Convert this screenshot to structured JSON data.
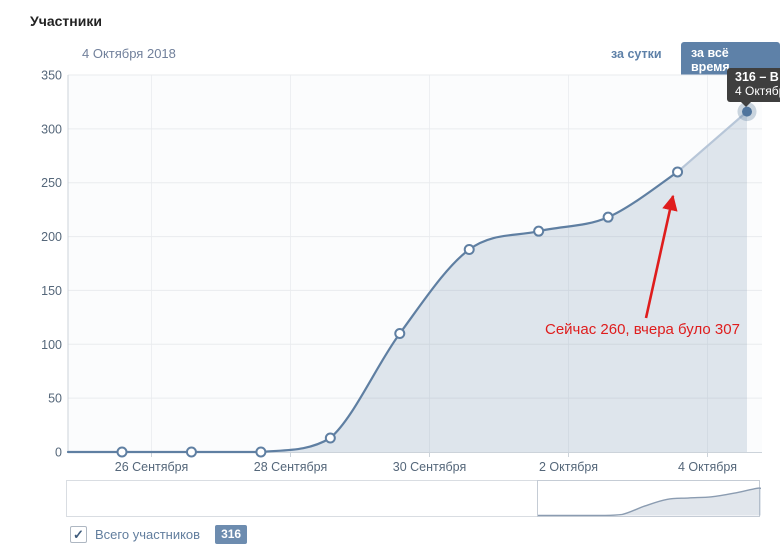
{
  "header": {
    "title": "Участники",
    "date_label": "4 Октября 2018"
  },
  "tabs": {
    "daily_label": "за сутки",
    "all_time_label": "за всё время",
    "active": "за всё время"
  },
  "tooltip": {
    "value_line": "316 – В",
    "date_line": "4 Октябр"
  },
  "annotation": {
    "text": "Сейчас 260, вчера було 307"
  },
  "legend": {
    "label": "Всего участников",
    "count": "316",
    "checked": true,
    "checkmark_glyph": "✓"
  },
  "colors": {
    "accent": "#5e81a8",
    "line": "#5f7fa2",
    "line_light": "#b7c6d8",
    "area_fill": "rgba(95,127,160,0.18)",
    "final_dot": "#4f749c",
    "final_halo": "rgba(95,127,160,0.32)",
    "annotation_red": "#df1d1d",
    "tooltip_bg": "#3f3f3f",
    "badge_bg": "#6d8caf",
    "grid": "#e9ebee",
    "grid_vertical": "#edeff2",
    "axis": "#ccd3da",
    "tick_text": "#55677a",
    "plot_bg": "#fbfcfd",
    "mini_line": "#8b9cb1",
    "mini_fill": "rgba(120,140,168,0.22)"
  },
  "chart_data": {
    "type": "area",
    "title": "Участники",
    "series": [
      {
        "name": "Всего участников",
        "values": [
          0,
          0,
          0,
          13,
          110,
          188,
          205,
          218,
          260,
          316
        ]
      }
    ],
    "x_tick_labels": [
      "26 Сентября",
      "28 Сентября",
      "30 Сентября",
      "2 Октября",
      "4 Октября"
    ],
    "y_ticks": [
      0,
      50,
      100,
      150,
      200,
      250,
      300,
      350
    ],
    "ylim": [
      0,
      350
    ],
    "grid": true,
    "legend_position": "bottom",
    "highlight": {
      "last_value": 316,
      "annotated_value": 260,
      "last_segment_style": "light"
    },
    "navigator": {
      "window_start_fraction": 0.68,
      "window_end_fraction": 1.0
    }
  }
}
